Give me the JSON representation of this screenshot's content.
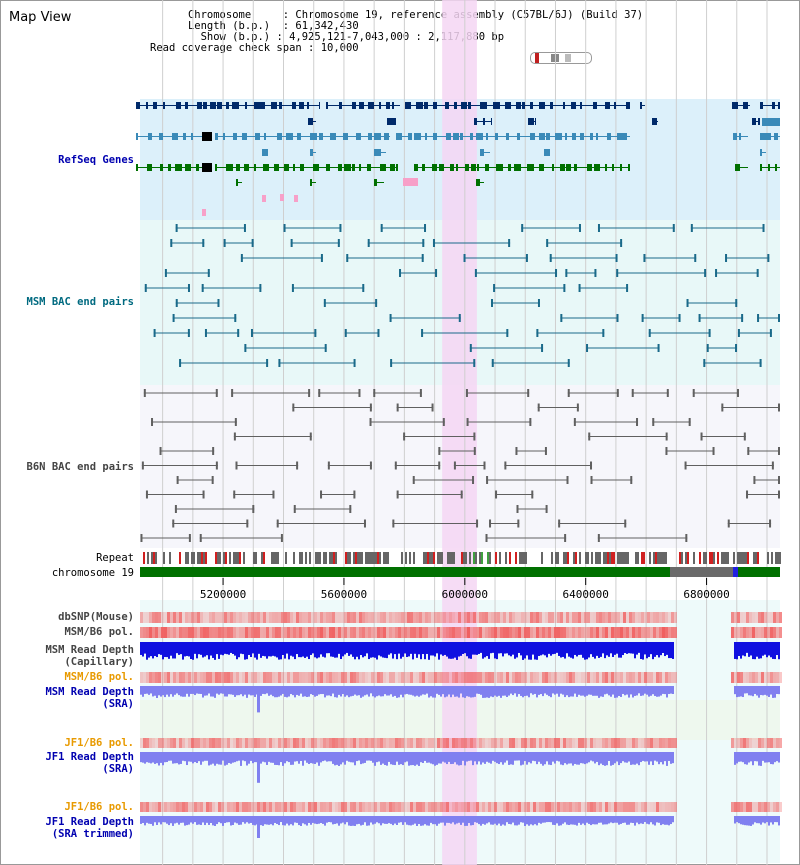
{
  "view": {
    "title": "Map View"
  },
  "info": {
    "chromosome_label": "Chromosome",
    "chromosome_value": "Chromosome 19, reference assembly (C57BL/6J) (Build 37)",
    "length_label": "Length (b.p.)",
    "length_value": "61,342,430",
    "show_label": "Show (b.p.)",
    "show_value": "4,925,121-7,043,000 : 2,117,880 bp",
    "coverage_label": "Read coverage check span",
    "coverage_value": "10,000"
  },
  "tracks": {
    "refseq": "RefSeq Genes",
    "msm_bac": "MSM BAC end pairs",
    "b6n_bac": "B6N BAC end pairs",
    "repeat": "Repeat",
    "chromosome": "chromosome 19",
    "dbsnp": "dbSNP(Mouse)",
    "msm_b6_pol": "MSM/B6 pol.",
    "msm_depth_cap_1": "MSM Read Depth",
    "msm_depth_cap_2": "(Capillary)",
    "msm_b6_pol2": "MSM/B6 pol.",
    "msm_depth_sra_1": "MSM Read Depth",
    "msm_depth_sra_2": "(SRA)",
    "jf1_b6_pol": "JF1/B6 pol.",
    "jf1_depth_sra_1": "JF1 Read Depth",
    "jf1_depth_sra_2": "(SRA)",
    "jf1_b6_pol2": "JF1/B6 pol.",
    "jf1_depth_trim_1": "JF1 Read Depth",
    "jf1_depth_trim_2": "(SRA trimmed)"
  },
  "axis": {
    "ticks": [
      "5200000",
      "5600000",
      "6000000",
      "6400000",
      "6800000"
    ],
    "view_start": 4925121,
    "view_end": 7043000
  },
  "highlight": {
    "start": 5925000,
    "end": 6040000
  },
  "colors": {
    "refseq_bg": "#dcf0fa",
    "msm_bg": "#e8f8f8",
    "b6n_bg": "#f6f6fb",
    "highlight": "#f5d6f3",
    "gene_dark": "#002a6a",
    "gene_mid": "#3a8ab8",
    "gene_green": "#007000",
    "gene_pink": "#f7a0c8",
    "msm_line": "#1a6a8a",
    "b6n_line": "#606060",
    "chrom_green": "#007000",
    "depth_blue": "#1010e0",
    "depth_light": "#8080f0",
    "snp_red": "#f06060"
  }
}
